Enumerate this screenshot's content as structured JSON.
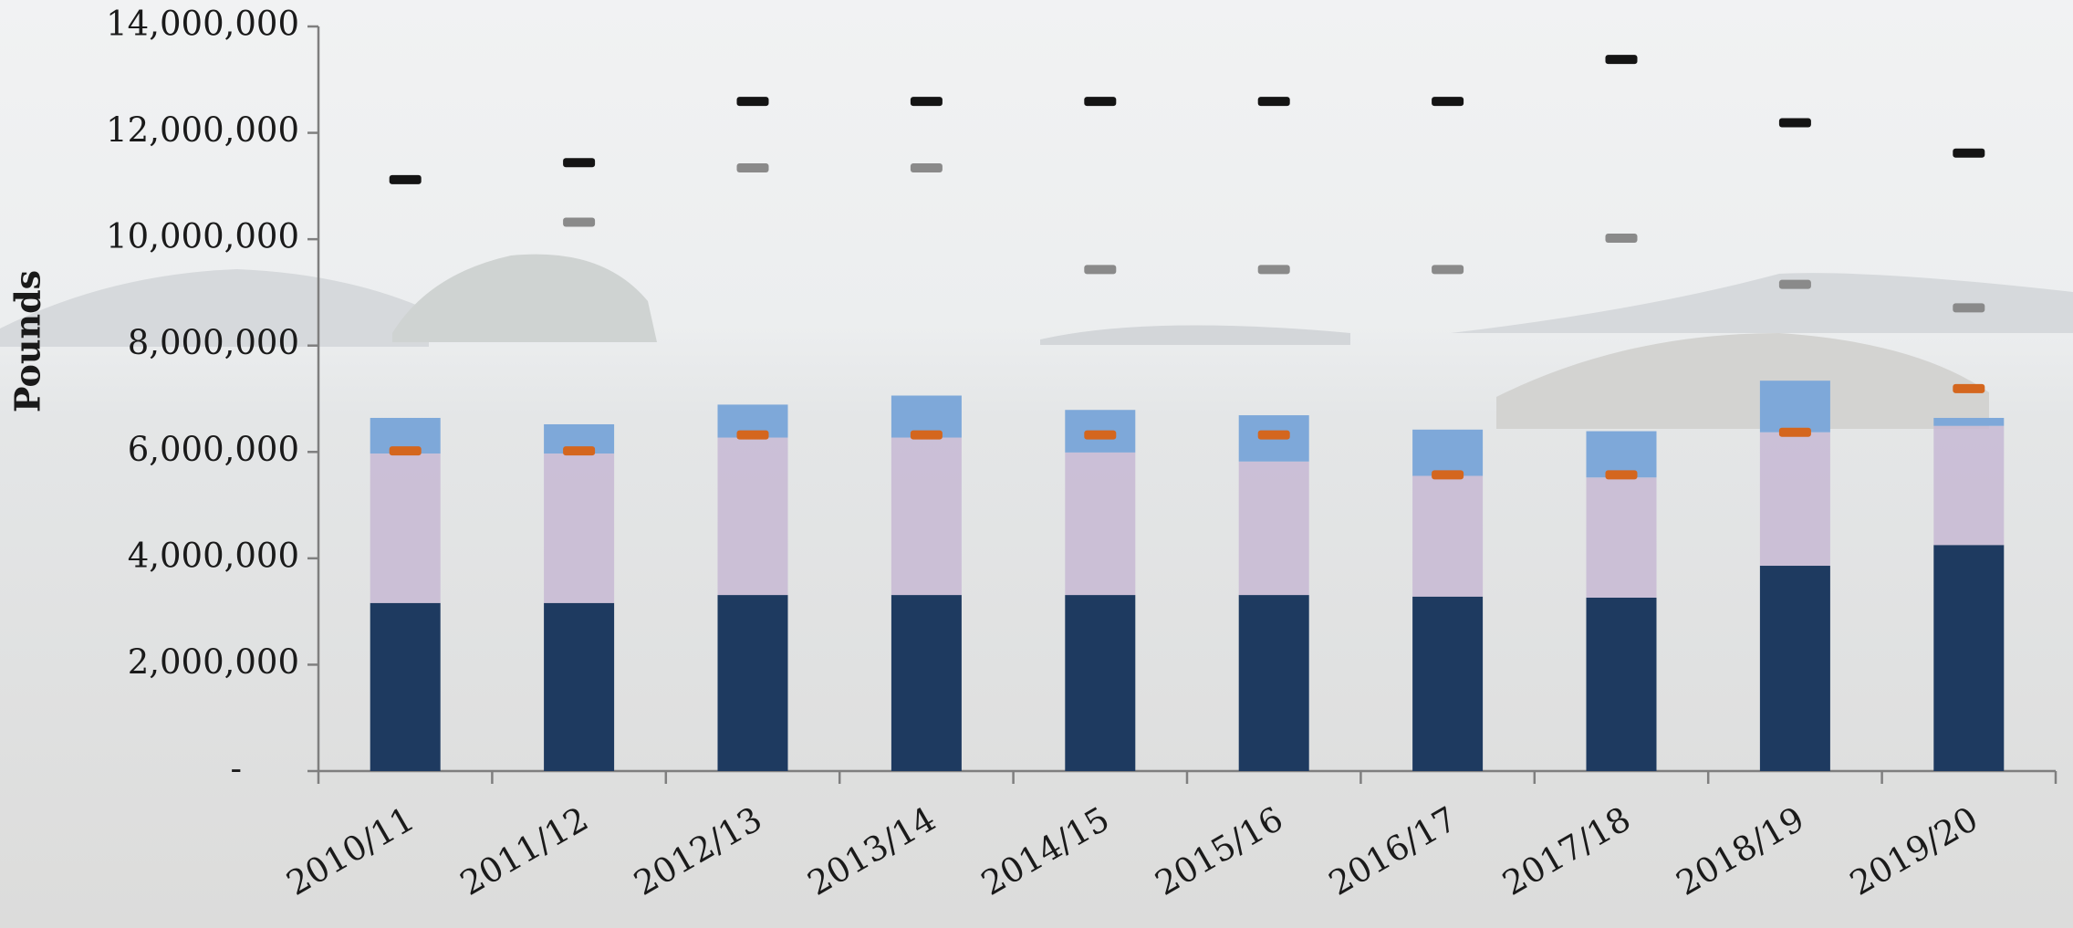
{
  "chart_data": {
    "type": "bar",
    "stacked": true,
    "ylabel": "Pounds",
    "categories": [
      "2010/11",
      "2011/12",
      "2012/13",
      "2013/14",
      "2014/15",
      "2015/16",
      "2016/17",
      "2017/18",
      "2018/19",
      "2019/20"
    ],
    "series": [
      {
        "color": "#1e3a60",
        "values": [
          3160000,
          3160000,
          3310000,
          3310000,
          3310000,
          3310000,
          3280000,
          3260000,
          3860000,
          4250000
        ]
      },
      {
        "color": "#c7b8d3",
        "values": [
          2810000,
          2810000,
          2960000,
          2960000,
          2680000,
          2510000,
          2270000,
          2260000,
          2510000,
          2240000
        ]
      },
      {
        "color": "#7ea8d9",
        "values": [
          670000,
          550000,
          620000,
          790000,
          800000,
          870000,
          870000,
          870000,
          970000,
          150000
        ]
      }
    ],
    "markers": [
      {
        "color": "#141414",
        "values": [
          11120000,
          11440000,
          12590000,
          12590000,
          12590000,
          12590000,
          12590000,
          13380000,
          12190000,
          11620000
        ]
      },
      {
        "color": "#8a8a8a",
        "values": [
          null,
          10320000,
          11340000,
          11340000,
          9430000,
          9430000,
          9430000,
          10020000,
          9150000,
          8710000
        ]
      },
      {
        "color": "#d4661e",
        "values": [
          6020000,
          6020000,
          6320000,
          6320000,
          6320000,
          6320000,
          5570000,
          5570000,
          6370000,
          7190000
        ]
      }
    ],
    "ylim": [
      0,
      14000000
    ],
    "yticks": [
      {
        "value": 0,
        "label": "-"
      },
      {
        "value": 2000000,
        "label": "2,000,000"
      },
      {
        "value": 4000000,
        "label": "4,000,000"
      },
      {
        "value": 6000000,
        "label": "6,000,000"
      },
      {
        "value": 8000000,
        "label": "8,000,000"
      },
      {
        "value": 10000000,
        "label": "10,000,000"
      },
      {
        "value": 12000000,
        "label": "12,000,000"
      },
      {
        "value": 14000000,
        "label": "14,000,000"
      }
    ]
  }
}
